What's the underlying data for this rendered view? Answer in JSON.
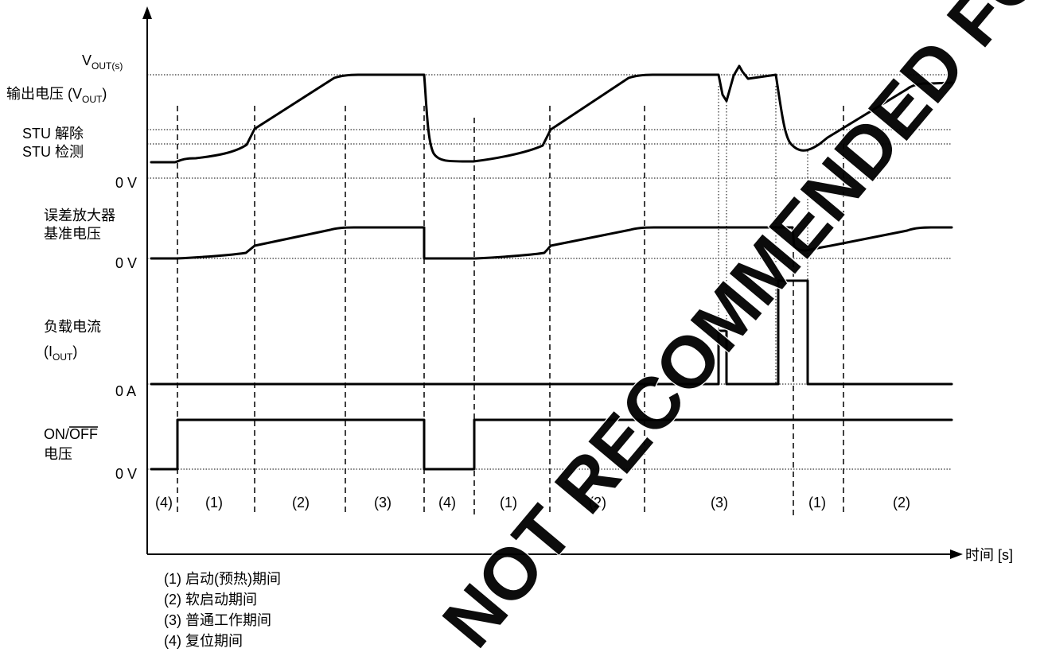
{
  "colors": {
    "line": "#000000",
    "watermark": "#ff0000",
    "background": "#ffffff"
  },
  "y_labels": {
    "vout_s_main": "V",
    "vout_s_sub": "OUT(s)",
    "vout_main": "输出电压 (V",
    "vout_sub": "OUT",
    "vout_close": ")",
    "stu_release": "STU 解除",
    "stu_detect": "STU 检测",
    "zero_v_1": "0 V",
    "ea_ref_line1": "误差放大器",
    "ea_ref_line2": "基准电压",
    "zero_v_2": "0 V",
    "load_line1": "负载电流",
    "load_open": "(I",
    "load_sub": "OUT",
    "load_close": ")",
    "zero_a": "0 A",
    "on_label": "ON/",
    "off_label": "OFF",
    "on_off_line2": "电压",
    "zero_v_3": "0 V"
  },
  "x_axis_label": "时间  [s]",
  "periods": [
    "(4)",
    "(1)",
    "(2)",
    "(3)",
    "(4)",
    "(1)",
    "(2)",
    "(3)",
    "(1)",
    "(2)"
  ],
  "legend": [
    "(1)  启动(预热)期间",
    "(2)  软启动期间",
    "(3)  普通工作期间",
    "(4)  复位期间"
  ],
  "watermark": "NOT RECOMMENDED FOR NEW DESIGN"
}
